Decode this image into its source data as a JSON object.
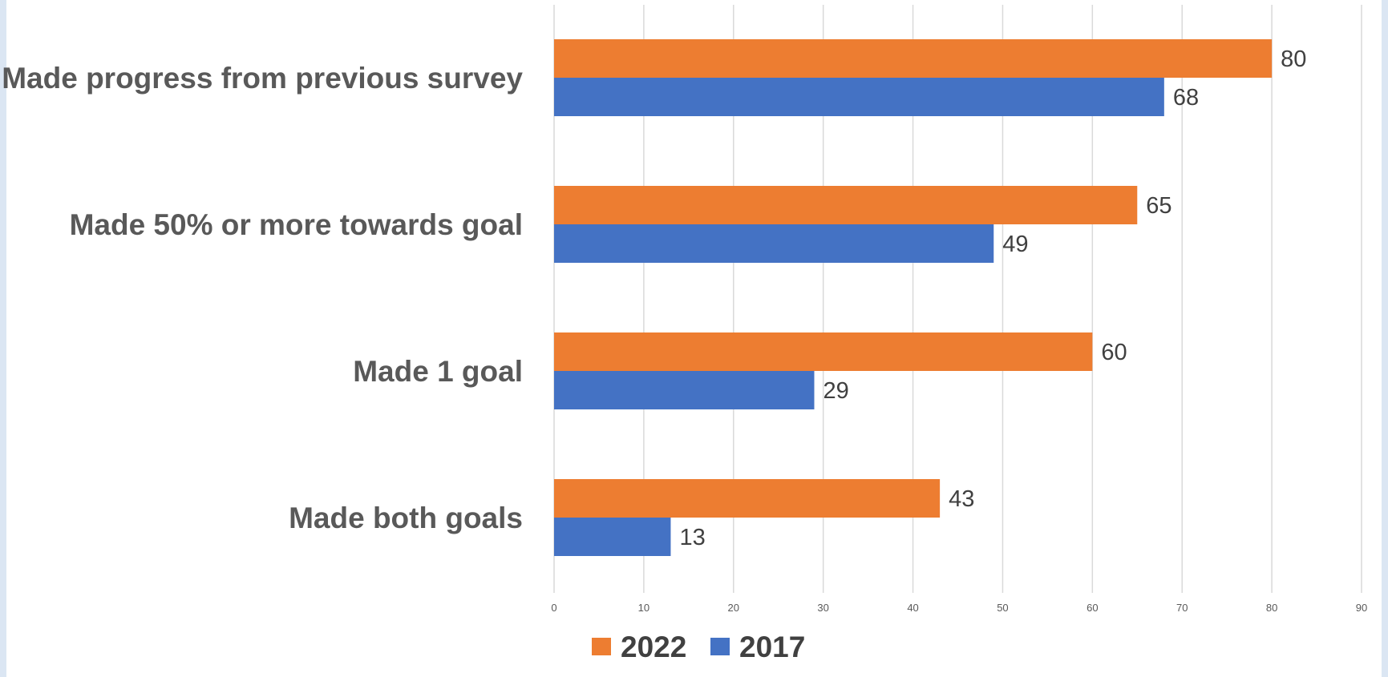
{
  "chart_data": {
    "type": "bar",
    "orientation": "horizontal",
    "categories": [
      "Made progress from previous survey",
      "Made 50% or more towards goal",
      "Made 1 goal",
      "Made both goals"
    ],
    "series": [
      {
        "name": "2022",
        "color": "#ed7d31",
        "values": [
          80,
          65,
          60,
          43
        ]
      },
      {
        "name": "2017",
        "color": "#4472c4",
        "values": [
          68,
          49,
          29,
          13
        ]
      }
    ],
    "xlim": [
      0,
      90
    ],
    "xticks": [
      0,
      10,
      20,
      30,
      40,
      50,
      60,
      70,
      80,
      90
    ],
    "grid": true,
    "legend_position": "bottom",
    "data_labels": true
  }
}
